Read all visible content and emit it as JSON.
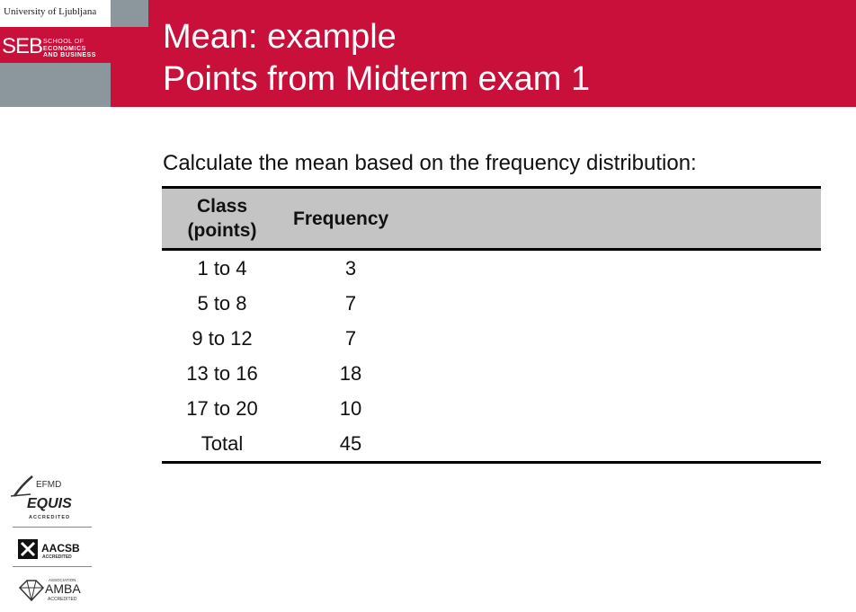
{
  "header": {
    "university": "University of Ljubljana",
    "school_mark": "SEB",
    "school_line1": "SCHOOL OF",
    "school_line2": "ECONOMICS",
    "school_line3": "AND BUSINESS",
    "title_line1": "Mean: example",
    "title_line2": "Points from Midterm exam 1",
    "accent_color": "#c8103a",
    "gray_color": "#8c969d"
  },
  "instruction": "Calculate the mean based on the frequency distribution:",
  "table": {
    "headers": {
      "class_line1": "Class",
      "class_line2": "(points)",
      "frequency": "Frequency"
    },
    "rows": [
      {
        "class": "1 to 4",
        "frequency": "3"
      },
      {
        "class": "5 to 8",
        "frequency": "7"
      },
      {
        "class": "9 to 12",
        "frequency": "7"
      },
      {
        "class": "13 to 16",
        "frequency": "18"
      },
      {
        "class": "17 to 20",
        "frequency": "10"
      },
      {
        "class": "Total",
        "frequency": "45"
      }
    ]
  },
  "accreditations": {
    "equis_org": "EFMD",
    "equis_name": "EQUIS",
    "equis_sub": "ACCREDITED",
    "aacsb_name": "AACSB",
    "aacsb_sub": "ACCREDITED",
    "amba_top": "ASSOCIATION",
    "amba_name": "AMBA",
    "amba_sub": "ACCREDITED"
  }
}
